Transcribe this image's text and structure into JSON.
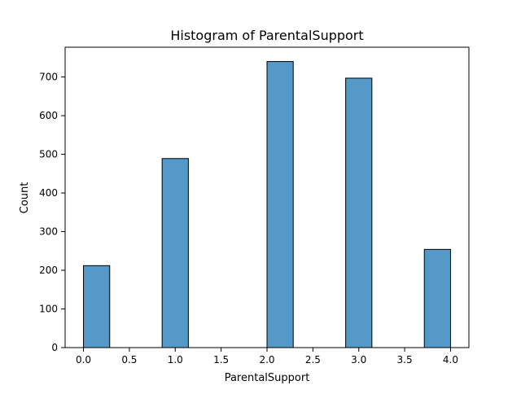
{
  "chart_data": {
    "type": "bar",
    "title": "Histogram of ParentalSupport",
    "xlabel": "ParentalSupport",
    "ylabel": "Count",
    "xlim": [
      -0.2,
      4.2
    ],
    "ylim": [
      0,
      777
    ],
    "x_ticks": [
      0.0,
      0.5,
      1.0,
      1.5,
      2.0,
      2.5,
      3.0,
      3.5,
      4.0
    ],
    "x_tick_labels": [
      "0.0",
      "0.5",
      "1.0",
      "1.5",
      "2.0",
      "2.5",
      "3.0",
      "3.5",
      "4.0"
    ],
    "y_ticks": [
      0,
      100,
      200,
      300,
      400,
      500,
      600,
      700
    ],
    "y_tick_labels": [
      "0",
      "100",
      "200",
      "300",
      "400",
      "500",
      "600",
      "700"
    ],
    "bins": [
      {
        "x0": 0.0,
        "x1": 0.2857,
        "count": 212
      },
      {
        "x0": 0.2857,
        "x1": 0.5714,
        "count": 0
      },
      {
        "x0": 0.5714,
        "x1": 0.8571,
        "count": 0
      },
      {
        "x0": 0.8571,
        "x1": 1.1429,
        "count": 489
      },
      {
        "x0": 1.1429,
        "x1": 1.4286,
        "count": 0
      },
      {
        "x0": 1.4286,
        "x1": 1.7143,
        "count": 0
      },
      {
        "x0": 1.7143,
        "x1": 2.0,
        "count": 0
      },
      {
        "x0": 2.0,
        "x1": 2.2857,
        "count": 740
      },
      {
        "x0": 2.2857,
        "x1": 2.5714,
        "count": 0
      },
      {
        "x0": 2.5714,
        "x1": 2.8571,
        "count": 0
      },
      {
        "x0": 2.8571,
        "x1": 3.1429,
        "count": 697
      },
      {
        "x0": 3.1429,
        "x1": 3.4286,
        "count": 0
      },
      {
        "x0": 3.4286,
        "x1": 3.7143,
        "count": 0
      },
      {
        "x0": 3.7143,
        "x1": 4.0,
        "count": 254
      }
    ],
    "bar_color": "#5499C7",
    "edge_color": "#000000",
    "grid": false
  }
}
